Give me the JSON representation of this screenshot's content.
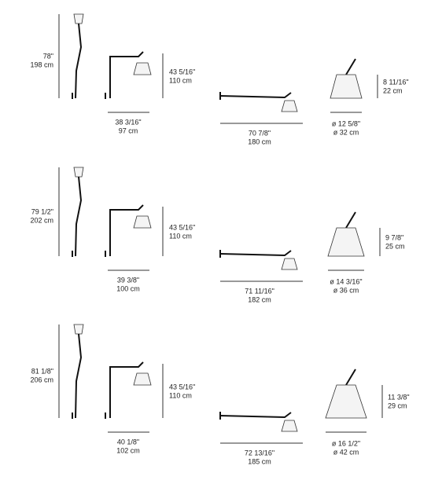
{
  "rows": [
    {
      "floor": {
        "imperial": "78\"",
        "metric": "198 cm"
      },
      "wall": {
        "imperial": "43 5/16\"",
        "metric": "110 cm"
      },
      "reach": {
        "imperial": "38 3/16\"",
        "metric": "97 cm"
      },
      "span": {
        "imperial": "70 7/8\"",
        "metric": "180 cm"
      },
      "shade_height": {
        "imperial": "8 11/16\"",
        "metric": "22 cm"
      },
      "shade_diameter": {
        "imperial": "ø 12 5/8\"",
        "metric": "ø 32 cm"
      }
    },
    {
      "floor": {
        "imperial": "79 1/2\"",
        "metric": "202 cm"
      },
      "wall": {
        "imperial": "43 5/16\"",
        "metric": "110 cm"
      },
      "reach": {
        "imperial": "39 3/8\"",
        "metric": "100 cm"
      },
      "span": {
        "imperial": "71 11/16\"",
        "metric": "182 cm"
      },
      "shade_height": {
        "imperial": "9 7/8\"",
        "metric": "25 cm"
      },
      "shade_diameter": {
        "imperial": "ø 14 3/16\"",
        "metric": "ø 36 cm"
      }
    },
    {
      "floor": {
        "imperial": "81 1/8\"",
        "metric": "206 cm"
      },
      "wall": {
        "imperial": "43 5/16\"",
        "metric": "110 cm"
      },
      "reach": {
        "imperial": "40 1/8\"",
        "metric": "102 cm"
      },
      "span": {
        "imperial": "72 13/16\"",
        "metric": "185 cm"
      },
      "shade_height": {
        "imperial": "11 3/8\"",
        "metric": "29 cm"
      },
      "shade_diameter": {
        "imperial": "ø 16 1/2\"",
        "metric": "ø 42 cm"
      }
    }
  ]
}
